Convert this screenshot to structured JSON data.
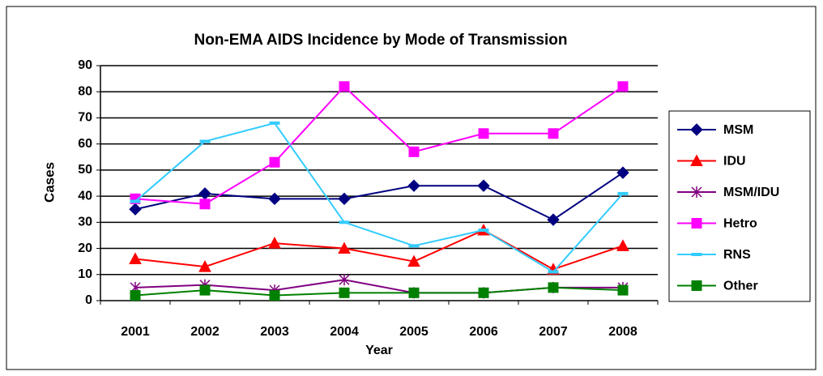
{
  "chart_data": {
    "type": "line",
    "title": "Non-EMA AIDS Incidence by Mode of Transmission",
    "x_label": "Year",
    "y_label": "Cases",
    "categories": [
      "2001",
      "2002",
      "2003",
      "2004",
      "2005",
      "2006",
      "2007",
      "2008"
    ],
    "series": [
      {
        "name": "MSM",
        "color": "#000080",
        "marker": "diamond",
        "values": [
          35,
          41,
          39,
          39,
          44,
          44,
          31,
          49
        ]
      },
      {
        "name": "IDU",
        "color": "#ff0000",
        "marker": "triangle",
        "values": [
          16,
          13,
          22,
          20,
          15,
          27,
          12,
          21
        ]
      },
      {
        "name": "MSM/IDU",
        "color": "#800080",
        "marker": "asterisk",
        "values": [
          5,
          6,
          4,
          8,
          3,
          3,
          5,
          5
        ]
      },
      {
        "name": "Hetro",
        "color": "#ff00ff",
        "marker": "square",
        "values": [
          39,
          37,
          53,
          82,
          57,
          64,
          64,
          82
        ]
      },
      {
        "name": "RNS",
        "color": "#33ccff",
        "marker": "dash",
        "values": [
          38,
          61,
          68,
          30,
          21,
          27,
          11,
          41
        ]
      },
      {
        "name": "Other",
        "color": "#008000",
        "marker": "square",
        "values": [
          2,
          4,
          2,
          3,
          3,
          3,
          5,
          4
        ]
      }
    ],
    "ylim": [
      0,
      90
    ],
    "yticks": [
      0,
      10,
      20,
      30,
      40,
      50,
      60,
      70,
      80,
      90
    ],
    "grid": true,
    "legend": "right"
  }
}
